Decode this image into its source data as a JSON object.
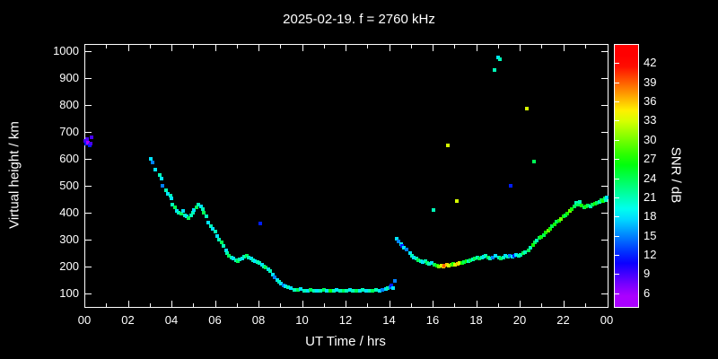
{
  "page": {
    "background": "#000000",
    "text_color": "#ffffff"
  },
  "chart_data": {
    "type": "scatter",
    "title": "2025-02-19. f = 2760 kHz",
    "xlabel": "UT Time / hrs",
    "ylabel": "Virtual height / km",
    "colorbar_label": "SNR / dB",
    "xlim": [
      0,
      24
    ],
    "ylim": [
      55,
      1025
    ],
    "grid": false,
    "legend": "none",
    "x_tick_values": [
      0,
      2,
      4,
      6,
      8,
      10,
      12,
      14,
      16,
      18,
      20,
      22,
      24
    ],
    "x_tick_labels": [
      "00",
      "02",
      "04",
      "06",
      "08",
      "10",
      "12",
      "14",
      "16",
      "18",
      "20",
      "22",
      "00"
    ],
    "x_minor_tick_values": [
      1,
      3,
      5,
      7,
      9,
      11,
      13,
      15,
      17,
      19,
      21,
      23
    ],
    "y_tick_values": [
      100,
      200,
      300,
      400,
      500,
      600,
      700,
      800,
      900,
      1000
    ],
    "y_tick_labels": [
      "100",
      "200",
      "300",
      "400",
      "500",
      "600",
      "700",
      "800",
      "900",
      "1000"
    ],
    "colorbar": {
      "min": 4,
      "max": 45,
      "tick_values": [
        6,
        9,
        12,
        15,
        18,
        21,
        24,
        27,
        30,
        33,
        36,
        39,
        42
      ],
      "tick_labels": [
        "6",
        "9",
        "12",
        "15",
        "18",
        "21",
        "24",
        "27",
        "30",
        "33",
        "36",
        "39",
        "42"
      ],
      "color_scale": "rainbow-purple-to-red"
    },
    "points": [
      [
        0.05,
        665,
        9
      ],
      [
        0.1,
        655,
        12
      ],
      [
        0.13,
        672,
        9
      ],
      [
        0.18,
        660,
        6
      ],
      [
        0.23,
        650,
        12
      ],
      [
        0.28,
        656,
        9
      ],
      [
        0.32,
        680,
        9
      ],
      [
        3.05,
        600,
        18
      ],
      [
        3.15,
        585,
        15
      ],
      [
        3.25,
        560,
        18
      ],
      [
        3.45,
        540,
        21
      ],
      [
        3.55,
        528,
        18
      ],
      [
        3.6,
        500,
        15
      ],
      [
        3.75,
        482,
        21
      ],
      [
        3.85,
        470,
        18
      ],
      [
        3.95,
        462,
        21
      ],
      [
        4.0,
        452,
        18
      ],
      [
        4.05,
        432,
        21
      ],
      [
        4.15,
        420,
        24
      ],
      [
        4.25,
        406,
        18
      ],
      [
        4.35,
        400,
        21
      ],
      [
        4.45,
        396,
        24
      ],
      [
        4.55,
        406,
        18
      ],
      [
        4.6,
        392,
        21
      ],
      [
        4.7,
        386,
        18
      ],
      [
        4.8,
        380,
        24
      ],
      [
        4.9,
        390,
        21
      ],
      [
        5.0,
        400,
        21
      ],
      [
        5.05,
        410,
        18
      ],
      [
        5.15,
        420,
        24
      ],
      [
        5.25,
        430,
        21
      ],
      [
        5.35,
        424,
        18
      ],
      [
        5.45,
        414,
        21
      ],
      [
        5.5,
        400,
        24
      ],
      [
        5.6,
        386,
        21
      ],
      [
        5.7,
        365,
        18
      ],
      [
        5.8,
        350,
        21
      ],
      [
        5.9,
        340,
        18
      ],
      [
        6.0,
        330,
        21
      ],
      [
        6.1,
        315,
        18
      ],
      [
        6.2,
        300,
        21
      ],
      [
        6.3,
        290,
        24
      ],
      [
        6.4,
        276,
        21
      ],
      [
        6.5,
        260,
        18
      ],
      [
        6.55,
        250,
        21
      ],
      [
        6.65,
        242,
        24
      ],
      [
        6.75,
        236,
        21
      ],
      [
        6.85,
        230,
        18
      ],
      [
        6.95,
        226,
        21
      ],
      [
        7.05,
        222,
        24
      ],
      [
        7.15,
        228,
        21
      ],
      [
        7.25,
        232,
        18
      ],
      [
        7.35,
        238,
        21
      ],
      [
        7.45,
        240,
        24
      ],
      [
        7.55,
        236,
        21
      ],
      [
        7.65,
        230,
        18
      ],
      [
        7.75,
        226,
        21
      ],
      [
        7.85,
        222,
        18
      ],
      [
        7.95,
        218,
        21
      ],
      [
        8.05,
        214,
        21
      ],
      [
        8.1,
        360,
        12
      ],
      [
        8.15,
        208,
        18
      ],
      [
        8.25,
        202,
        21
      ],
      [
        8.35,
        198,
        24
      ],
      [
        8.45,
        192,
        18
      ],
      [
        8.55,
        185,
        21
      ],
      [
        8.65,
        172,
        18
      ],
      [
        8.75,
        162,
        15
      ],
      [
        8.85,
        152,
        18
      ],
      [
        8.95,
        144,
        21
      ],
      [
        9.05,
        138,
        18
      ],
      [
        9.15,
        132,
        15
      ],
      [
        9.25,
        128,
        18
      ],
      [
        9.35,
        124,
        21
      ],
      [
        9.5,
        120,
        18
      ],
      [
        9.65,
        116,
        21
      ],
      [
        9.8,
        114,
        24
      ],
      [
        9.95,
        117,
        18
      ],
      [
        10.1,
        113,
        21
      ],
      [
        10.25,
        111,
        18
      ],
      [
        10.4,
        114,
        24
      ],
      [
        10.55,
        112,
        21
      ],
      [
        10.7,
        110,
        18
      ],
      [
        10.85,
        113,
        21
      ],
      [
        11.0,
        115,
        24
      ],
      [
        11.15,
        112,
        18
      ],
      [
        11.3,
        110,
        27
      ],
      [
        11.45,
        113,
        21
      ],
      [
        11.6,
        115,
        18
      ],
      [
        11.75,
        112,
        21
      ],
      [
        11.9,
        110,
        24
      ],
      [
        12.05,
        113,
        21
      ],
      [
        12.2,
        115,
        18
      ],
      [
        12.35,
        112,
        21
      ],
      [
        12.5,
        110,
        24
      ],
      [
        12.65,
        113,
        18
      ],
      [
        12.8,
        115,
        21
      ],
      [
        12.95,
        112,
        18
      ],
      [
        13.1,
        110,
        21
      ],
      [
        13.25,
        113,
        24
      ],
      [
        13.4,
        116,
        21
      ],
      [
        13.55,
        112,
        18
      ],
      [
        13.7,
        115,
        15
      ],
      [
        13.85,
        118,
        18
      ],
      [
        13.95,
        122,
        21
      ],
      [
        14.05,
        126,
        15
      ],
      [
        14.1,
        132,
        12
      ],
      [
        14.2,
        120,
        18
      ],
      [
        14.25,
        148,
        15
      ],
      [
        14.35,
        305,
        18
      ],
      [
        14.45,
        295,
        15
      ],
      [
        14.55,
        285,
        18
      ],
      [
        14.6,
        278,
        12
      ],
      [
        14.7,
        270,
        18
      ],
      [
        14.8,
        264,
        15
      ],
      [
        14.95,
        250,
        18
      ],
      [
        15.05,
        242,
        21
      ],
      [
        15.15,
        235,
        18
      ],
      [
        15.25,
        230,
        21
      ],
      [
        15.35,
        226,
        24
      ],
      [
        15.45,
        222,
        21
      ],
      [
        15.55,
        218,
        18
      ],
      [
        15.65,
        220,
        21
      ],
      [
        15.75,
        215,
        24
      ],
      [
        15.85,
        212,
        21
      ],
      [
        15.95,
        214,
        18
      ],
      [
        16.05,
        410,
        21
      ],
      [
        16.1,
        208,
        24
      ],
      [
        16.2,
        204,
        27
      ],
      [
        16.3,
        200,
        30
      ],
      [
        16.4,
        203,
        33
      ],
      [
        16.5,
        200,
        36
      ],
      [
        16.55,
        204,
        39
      ],
      [
        16.65,
        207,
        36
      ],
      [
        16.7,
        650,
        33
      ],
      [
        16.75,
        203,
        33
      ],
      [
        16.85,
        208,
        30
      ],
      [
        16.95,
        212,
        27
      ],
      [
        17.05,
        208,
        33
      ],
      [
        17.1,
        445,
        33
      ],
      [
        17.15,
        212,
        36
      ],
      [
        17.25,
        216,
        33
      ],
      [
        17.35,
        214,
        27
      ],
      [
        17.45,
        218,
        24
      ],
      [
        17.55,
        222,
        27
      ],
      [
        17.65,
        220,
        21
      ],
      [
        17.75,
        224,
        24
      ],
      [
        17.85,
        228,
        21
      ],
      [
        17.95,
        230,
        24
      ],
      [
        18.05,
        234,
        21
      ],
      [
        18.15,
        230,
        24
      ],
      [
        18.25,
        234,
        21
      ],
      [
        18.35,
        238,
        18
      ],
      [
        18.45,
        240,
        21
      ],
      [
        18.55,
        236,
        24
      ],
      [
        18.65,
        232,
        21
      ],
      [
        18.75,
        236,
        15
      ],
      [
        18.85,
        930,
        21
      ],
      [
        18.9,
        240,
        18
      ],
      [
        19.0,
        975,
        18
      ],
      [
        19.05,
        236,
        21
      ],
      [
        19.1,
        968,
        21
      ],
      [
        19.15,
        232,
        24
      ],
      [
        19.25,
        236,
        21
      ],
      [
        19.35,
        240,
        18
      ],
      [
        19.45,
        238,
        21
      ],
      [
        19.55,
        242,
        15
      ],
      [
        19.6,
        500,
        12
      ],
      [
        19.65,
        238,
        18
      ],
      [
        19.75,
        242,
        12
      ],
      [
        19.85,
        246,
        18
      ],
      [
        19.95,
        242,
        21
      ],
      [
        20.05,
        246,
        21
      ],
      [
        20.15,
        250,
        24
      ],
      [
        20.25,
        255,
        21
      ],
      [
        20.35,
        785,
        33
      ],
      [
        20.4,
        262,
        24
      ],
      [
        20.5,
        272,
        21
      ],
      [
        20.6,
        282,
        27
      ],
      [
        20.65,
        590,
        24
      ],
      [
        20.7,
        290,
        24
      ],
      [
        20.8,
        298,
        21
      ],
      [
        20.9,
        306,
        24
      ],
      [
        21.0,
        312,
        27
      ],
      [
        21.1,
        318,
        24
      ],
      [
        21.2,
        326,
        27
      ],
      [
        21.3,
        334,
        30
      ],
      [
        21.4,
        342,
        27
      ],
      [
        21.5,
        350,
        24
      ],
      [
        21.6,
        358,
        27
      ],
      [
        21.7,
        366,
        24
      ],
      [
        21.8,
        372,
        27
      ],
      [
        21.9,
        378,
        30
      ],
      [
        22.0,
        386,
        27
      ],
      [
        22.1,
        392,
        24
      ],
      [
        22.2,
        398,
        27
      ],
      [
        22.3,
        406,
        30
      ],
      [
        22.4,
        414,
        27
      ],
      [
        22.5,
        424,
        24
      ],
      [
        22.6,
        436,
        21
      ],
      [
        22.7,
        430,
        24
      ],
      [
        22.75,
        442,
        21
      ],
      [
        22.85,
        428,
        27
      ],
      [
        22.95,
        422,
        24
      ],
      [
        23.05,
        424,
        27
      ],
      [
        23.15,
        428,
        24
      ],
      [
        23.25,
        424,
        21
      ],
      [
        23.35,
        430,
        24
      ],
      [
        23.45,
        434,
        27
      ],
      [
        23.55,
        438,
        24
      ],
      [
        23.65,
        442,
        21
      ],
      [
        23.75,
        448,
        24
      ],
      [
        23.85,
        444,
        27
      ],
      [
        23.9,
        452,
        24
      ],
      [
        23.95,
        448,
        21
      ],
      [
        24.0,
        456,
        18
      ]
    ]
  }
}
